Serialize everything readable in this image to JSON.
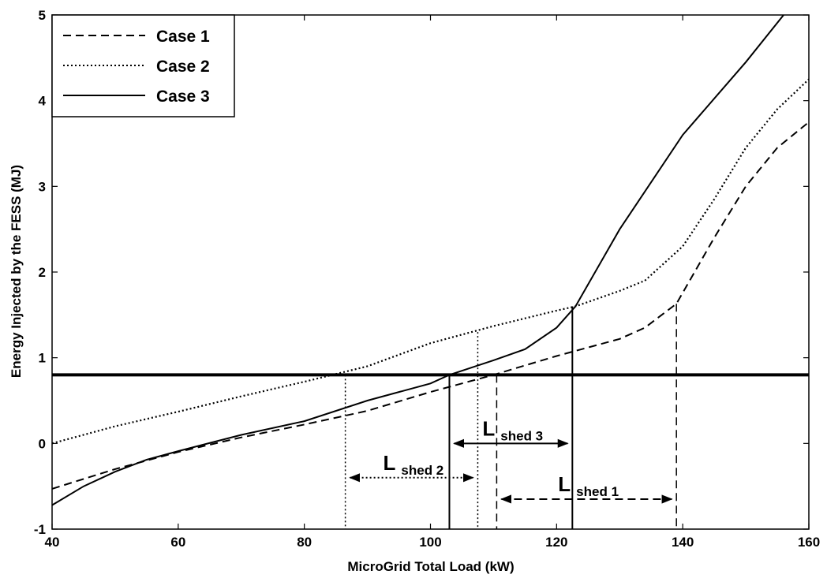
{
  "chart_data": {
    "type": "line",
    "title": "",
    "xlabel": "MicroGrid Total Load (kW)",
    "ylabel": "Energy Injected by the FESS (MJ)",
    "xlim": [
      40,
      160
    ],
    "ylim": [
      -1,
      5
    ],
    "xticks": [
      40,
      60,
      80,
      100,
      120,
      140,
      160
    ],
    "yticks": [
      -1,
      0,
      1,
      2,
      3,
      4,
      5
    ],
    "grid": false,
    "legend_position": "top-left",
    "threshold": 0.8,
    "series": [
      {
        "name": "Case 1",
        "style": "dashed",
        "points": [
          [
            40,
            -0.53
          ],
          [
            50,
            -0.3
          ],
          [
            60,
            -0.1
          ],
          [
            70,
            0.07
          ],
          [
            80,
            0.22
          ],
          [
            90,
            0.38
          ],
          [
            100,
            0.6
          ],
          [
            110,
            0.8
          ],
          [
            120,
            1.02
          ],
          [
            130,
            1.22
          ],
          [
            134,
            1.35
          ],
          [
            139,
            1.63
          ],
          [
            145,
            2.4
          ],
          [
            150,
            3.0
          ],
          [
            155,
            3.45
          ],
          [
            160,
            3.75
          ]
        ]
      },
      {
        "name": "Case 2",
        "style": "dotted",
        "points": [
          [
            40,
            0.0
          ],
          [
            50,
            0.2
          ],
          [
            60,
            0.37
          ],
          [
            70,
            0.55
          ],
          [
            80,
            0.72
          ],
          [
            90,
            0.9
          ],
          [
            100,
            1.17
          ],
          [
            110,
            1.37
          ],
          [
            120,
            1.55
          ],
          [
            123,
            1.6
          ],
          [
            130,
            1.78
          ],
          [
            134,
            1.9
          ],
          [
            140,
            2.3
          ],
          [
            145,
            2.85
          ],
          [
            150,
            3.45
          ],
          [
            155,
            3.9
          ],
          [
            160,
            4.25
          ]
        ]
      },
      {
        "name": "Case 3",
        "style": "solid",
        "points": [
          [
            40,
            -0.72
          ],
          [
            45,
            -0.5
          ],
          [
            50,
            -0.33
          ],
          [
            55,
            -0.19
          ],
          [
            60,
            -0.09
          ],
          [
            70,
            0.1
          ],
          [
            80,
            0.26
          ],
          [
            90,
            0.5
          ],
          [
            100,
            0.7
          ],
          [
            103,
            0.8
          ],
          [
            110,
            0.97
          ],
          [
            115,
            1.1
          ],
          [
            120,
            1.35
          ],
          [
            123,
            1.6
          ],
          [
            130,
            2.5
          ],
          [
            140,
            3.6
          ],
          [
            150,
            4.45
          ],
          [
            156,
            5.0
          ]
        ]
      }
    ],
    "annotations": [
      {
        "label_main": "L",
        "label_sub": "shed 1",
        "x_from": 110.5,
        "x_to": 139,
        "y": -0.65,
        "style": "dashed"
      },
      {
        "label_main": "L",
        "label_sub": "shed 2",
        "x_from": 86.5,
        "x_to": 107.5,
        "y": -0.4,
        "style": "dotted"
      },
      {
        "label_main": "L",
        "label_sub": "shed 3",
        "x_from": 103,
        "x_to": 122.5,
        "y": 0.0,
        "style": "solid"
      }
    ],
    "drop_lines": [
      {
        "x": 86.5,
        "y_top": 0.8,
        "style": "dotted"
      },
      {
        "x": 107.5,
        "y_top": 1.3,
        "style": "dotted"
      },
      {
        "x": 103,
        "y_top": 0.8,
        "style": "solid"
      },
      {
        "x": 110.5,
        "y_top": 0.8,
        "style": "dashed"
      },
      {
        "x": 122.5,
        "y_top": 1.6,
        "style": "solid"
      },
      {
        "x": 139,
        "y_top": 1.63,
        "style": "dashed"
      }
    ]
  }
}
